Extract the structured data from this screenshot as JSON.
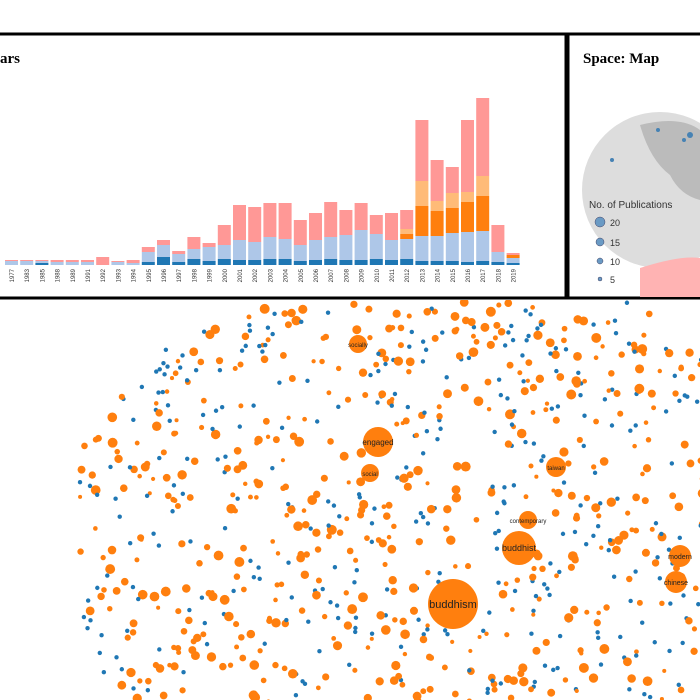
{
  "bar_panel": {
    "title": "ars",
    "chart_data": {
      "type": "bar",
      "categories": [
        "1977",
        "1983",
        "1985",
        "1988",
        "1989",
        "1991",
        "1992",
        "1993",
        "1994",
        "1995",
        "1996",
        "1997",
        "1998",
        "1999",
        "2000",
        "2001",
        "2002",
        "2003",
        "2004",
        "2005",
        "2006",
        "2007",
        "2008",
        "2009",
        "2010",
        "2011",
        "2012",
        "2013",
        "2014",
        "2015",
        "2016",
        "2017",
        "2018",
        "2019"
      ],
      "ylim": [
        0,
        170
      ],
      "series": [
        {
          "color": "#1f77b4",
          "values": [
            0,
            0,
            2,
            0,
            0,
            0,
            0,
            0,
            0,
            3,
            8,
            3,
            6,
            4,
            6,
            5,
            5,
            6,
            6,
            4,
            5,
            6,
            5,
            5,
            6,
            5,
            6,
            4,
            4,
            4,
            3,
            4,
            3,
            2
          ]
        },
        {
          "color": "#aec7e8",
          "values": [
            4,
            4,
            2,
            3,
            3,
            3,
            0,
            3,
            2,
            10,
            12,
            8,
            10,
            14,
            14,
            20,
            18,
            22,
            20,
            16,
            20,
            22,
            25,
            30,
            25,
            20,
            20,
            25,
            25,
            28,
            30,
            30,
            10,
            5
          ]
        },
        {
          "color": "#ff7f0e",
          "values": [
            0,
            0,
            0,
            0,
            0,
            0,
            0,
            0,
            0,
            0,
            0,
            0,
            0,
            0,
            0,
            0,
            0,
            0,
            0,
            0,
            0,
            0,
            0,
            0,
            0,
            0,
            5,
            30,
            25,
            25,
            30,
            35,
            0,
            3
          ]
        },
        {
          "color": "#ffbb78",
          "values": [
            0,
            0,
            0,
            0,
            0,
            0,
            0,
            0,
            0,
            0,
            0,
            0,
            0,
            0,
            0,
            0,
            0,
            0,
            0,
            0,
            0,
            0,
            0,
            0,
            0,
            0,
            5,
            25,
            10,
            15,
            10,
            20,
            0,
            0
          ]
        },
        {
          "color": "#ff9896",
          "values": [
            1,
            1,
            1,
            2,
            2,
            2,
            8,
            1,
            3,
            5,
            5,
            3,
            12,
            4,
            20,
            35,
            35,
            34,
            36,
            25,
            27,
            35,
            25,
            27,
            19,
            27,
            19,
            61,
            41,
            26,
            72,
            78,
            27,
            2
          ]
        }
      ]
    }
  },
  "map_panel": {
    "title": "Space: Map",
    "legend_title": "No. of Publications",
    "legend_sizes": [
      "20",
      "15",
      "10",
      "5"
    ]
  },
  "network_panel": {
    "nodes": [
      "socially",
      "engaged",
      "social",
      "taiwan",
      "contemporary",
      "buddhist",
      "modern",
      "chinese",
      "buddhism"
    ]
  }
}
